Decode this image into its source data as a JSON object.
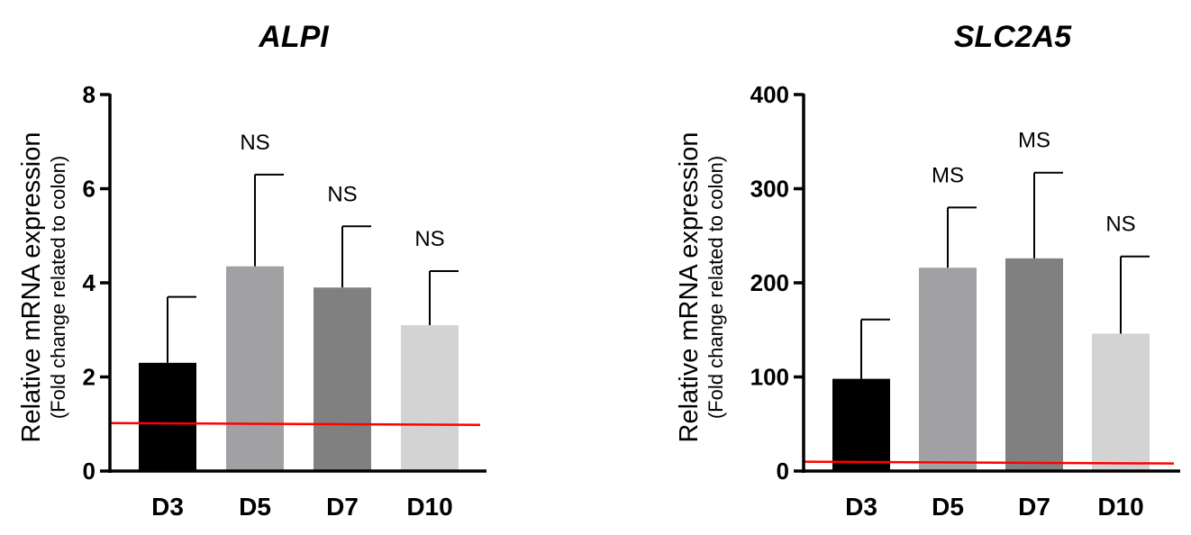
{
  "chart_data": [
    {
      "type": "bar",
      "title": "ALPI",
      "ylabel": "Relative mRNA expression",
      "ylabel_sub": "(Fold change related to colon)",
      "categories": [
        "D3",
        "D5",
        "D7",
        "D10"
      ],
      "values": [
        2.3,
        4.35,
        3.9,
        3.1
      ],
      "errors": [
        1.4,
        1.95,
        1.3,
        1.15
      ],
      "annotations": [
        "",
        "NS",
        "NS",
        "NS"
      ],
      "colors": [
        "#000000",
        "#a1a1a4",
        "#808080",
        "#d3d3d3"
      ],
      "ylim": [
        0,
        8
      ],
      "yticks": [
        0,
        2,
        4,
        6,
        8
      ],
      "reference_line": {
        "value": 1.0,
        "color": "#ff0000"
      },
      "grid": false
    },
    {
      "type": "bar",
      "title": "SLC2A5",
      "ylabel": "Relative mRNA expression",
      "ylabel_sub": "(Fold change related to colon)",
      "categories": [
        "D3",
        "D5",
        "D7",
        "D10"
      ],
      "values": [
        98,
        216,
        226,
        146
      ],
      "errors": [
        63,
        64,
        91,
        82
      ],
      "annotations": [
        "",
        "MS",
        "MS",
        "NS"
      ],
      "colors": [
        "#000000",
        "#a1a1a4",
        "#808080",
        "#d3d3d3"
      ],
      "ylim": [
        0,
        400
      ],
      "yticks": [
        0,
        100,
        200,
        300,
        400
      ],
      "reference_line": {
        "value": 9,
        "color": "#ff0000"
      },
      "grid": false
    }
  ]
}
